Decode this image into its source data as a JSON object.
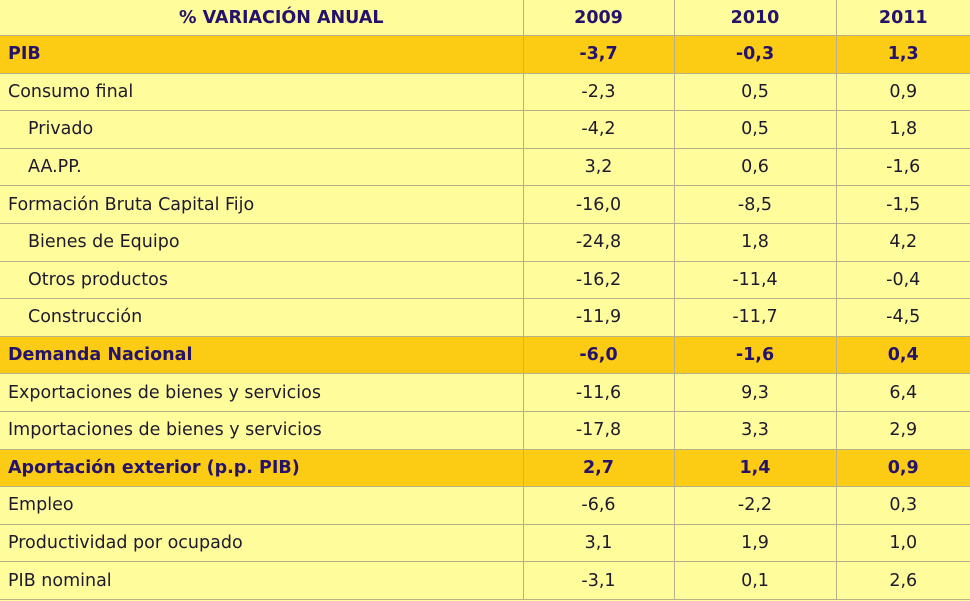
{
  "header": {
    "title": "% VARIACIÓN ANUAL",
    "years": [
      "2009",
      "2010",
      "2011"
    ]
  },
  "colors": {
    "background": "#FFFC9C",
    "highlight": "#FCCB14",
    "header_text": "#24126B"
  },
  "rows": [
    {
      "label": "PIB",
      "values": [
        "-3,7",
        "-0,3",
        "1,3"
      ],
      "highlight": true,
      "indent": false
    },
    {
      "label": "Consumo final",
      "values": [
        "-2,3",
        "0,5",
        "0,9"
      ],
      "highlight": false,
      "indent": false
    },
    {
      "label": "Privado",
      "values": [
        "-4,2",
        "0,5",
        "1,8"
      ],
      "highlight": false,
      "indent": true
    },
    {
      "label": "AA.PP.",
      "values": [
        "3,2",
        "0,6",
        "-1,6"
      ],
      "highlight": false,
      "indent": true
    },
    {
      "label": "Formación Bruta Capital Fijo",
      "values": [
        "-16,0",
        "-8,5",
        "-1,5"
      ],
      "highlight": false,
      "indent": false
    },
    {
      "label": "Bienes de Equipo",
      "values": [
        "-24,8",
        "1,8",
        "4,2"
      ],
      "highlight": false,
      "indent": true
    },
    {
      "label": "Otros productos",
      "values": [
        "-16,2",
        "-11,4",
        "-0,4"
      ],
      "highlight": false,
      "indent": true
    },
    {
      "label": "Construcción",
      "values": [
        "-11,9",
        "-11,7",
        "-4,5"
      ],
      "highlight": false,
      "indent": true
    },
    {
      "label": "Demanda Nacional",
      "values": [
        "-6,0",
        "-1,6",
        "0,4"
      ],
      "highlight": true,
      "indent": false
    },
    {
      "label": "Exportaciones de bienes y servicios",
      "values": [
        "-11,6",
        "9,3",
        "6,4"
      ],
      "highlight": false,
      "indent": false
    },
    {
      "label": "Importaciones de bienes y servicios",
      "values": [
        "-17,8",
        "3,3",
        "2,9"
      ],
      "highlight": false,
      "indent": false
    },
    {
      "label": "Aportación exterior (p.p. PIB)",
      "values": [
        "2,7",
        "1,4",
        "0,9"
      ],
      "highlight": true,
      "indent": false
    },
    {
      "label": "Empleo",
      "values": [
        "-6,6",
        "-2,2",
        "0,3"
      ],
      "highlight": false,
      "indent": false
    },
    {
      "label": "Productividad por ocupado",
      "values": [
        "3,1",
        "1,9",
        "1,0"
      ],
      "highlight": false,
      "indent": false
    },
    {
      "label": "PIB nominal",
      "values": [
        "-3,1",
        "0,1",
        "2,6"
      ],
      "highlight": false,
      "indent": false
    }
  ]
}
